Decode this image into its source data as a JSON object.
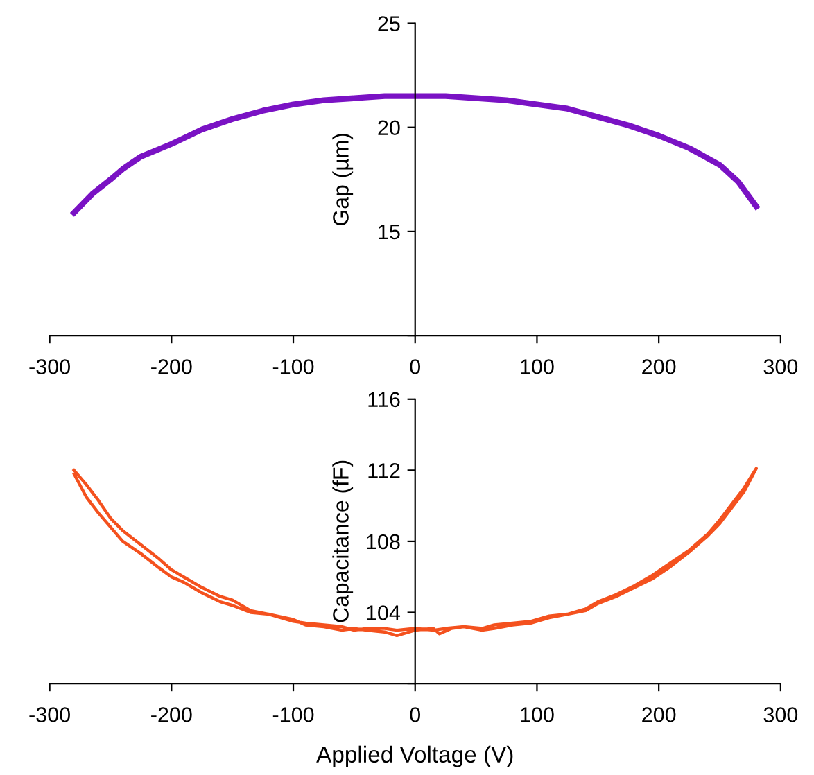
{
  "chart_data": [
    {
      "type": "line",
      "ylabel": "Gap (µm)",
      "xlim": [
        -300,
        300
      ],
      "xticks": [
        -300,
        -200,
        -100,
        0,
        100,
        200,
        300
      ],
      "ylim": [
        10,
        25
      ],
      "yticks": [
        {
          "value": 10,
          "label": null
        },
        15,
        20,
        25
      ],
      "grid": false,
      "legend": false,
      "marker": "none",
      "line_style": "solid",
      "series": [
        {
          "color": "#7a12c4",
          "x": [
            -280,
            -265,
            -250,
            -240,
            -225,
            -200,
            -175,
            -150,
            -125,
            -100,
            -75,
            -50,
            -25,
            0,
            25,
            50,
            75,
            100,
            125,
            150,
            175,
            200,
            225,
            250,
            265,
            280
          ],
          "values": [
            15.9,
            16.8,
            17.5,
            18.0,
            18.6,
            19.2,
            19.9,
            20.4,
            20.8,
            21.1,
            21.3,
            21.4,
            21.5,
            21.5,
            21.5,
            21.4,
            21.3,
            21.1,
            20.9,
            20.5,
            20.1,
            19.6,
            19.0,
            18.2,
            17.4,
            16.2
          ]
        }
      ]
    },
    {
      "type": "line",
      "ylabel": "Capacitance (fF)",
      "xlabel": "Applied Voltage (V)",
      "xlim": [
        -300,
        300
      ],
      "xticks": [
        -300,
        -200,
        -100,
        0,
        100,
        200,
        300
      ],
      "ylim": [
        100,
        116
      ],
      "yticks": [
        {
          "value": 100,
          "label": null
        },
        104,
        108,
        112,
        116
      ],
      "grid": false,
      "legend": false,
      "marker": "none",
      "line_style": "solid",
      "series": [
        {
          "color": "#f4511e",
          "x": [
            -280,
            -270,
            -260,
            -250,
            -240,
            -225,
            -210,
            -200,
            -190,
            -175,
            -160,
            -150,
            -135,
            -120,
            -100,
            -90,
            -75,
            -60,
            -50,
            -40,
            -25,
            -15,
            0,
            15,
            20,
            30,
            40,
            55,
            65,
            80,
            95,
            110,
            125,
            140,
            150,
            165,
            180,
            195,
            210,
            225,
            240,
            250,
            260,
            270,
            280,
            270,
            260,
            250,
            240,
            225,
            210,
            195,
            180,
            165,
            150,
            140,
            125,
            110,
            95,
            80,
            65,
            55,
            40,
            25,
            15,
            0,
            -15,
            -25,
            -40,
            -50,
            -60,
            -75,
            -90,
            -100,
            -120,
            -135,
            -150,
            -160,
            -175,
            -190,
            -200,
            -210,
            -225,
            -240,
            -250,
            -260,
            -270,
            -280
          ],
          "values": [
            112.0,
            111.2,
            110.3,
            109.3,
            108.6,
            107.8,
            107.0,
            106.4,
            106.0,
            105.4,
            104.9,
            104.7,
            104.1,
            103.9,
            103.6,
            103.3,
            103.2,
            103.0,
            103.1,
            103.0,
            102.9,
            102.7,
            103.0,
            103.1,
            102.8,
            103.1,
            103.2,
            103.0,
            103.1,
            103.3,
            103.4,
            103.7,
            103.9,
            104.1,
            104.5,
            104.9,
            105.4,
            105.9,
            106.6,
            107.4,
            108.3,
            109.0,
            109.9,
            110.8,
            112.1,
            111.0,
            110.1,
            109.2,
            108.4,
            107.5,
            106.8,
            106.1,
            105.5,
            105.0,
            104.6,
            104.2,
            103.9,
            103.8,
            103.5,
            103.4,
            103.3,
            103.1,
            103.2,
            103.1,
            103.0,
            103.1,
            103.0,
            103.1,
            103.1,
            103.0,
            103.2,
            103.3,
            103.4,
            103.5,
            103.9,
            104.0,
            104.4,
            104.6,
            105.1,
            105.7,
            106.0,
            106.5,
            107.3,
            108.0,
            108.8,
            109.6,
            110.5,
            111.8
          ]
        }
      ]
    }
  ]
}
